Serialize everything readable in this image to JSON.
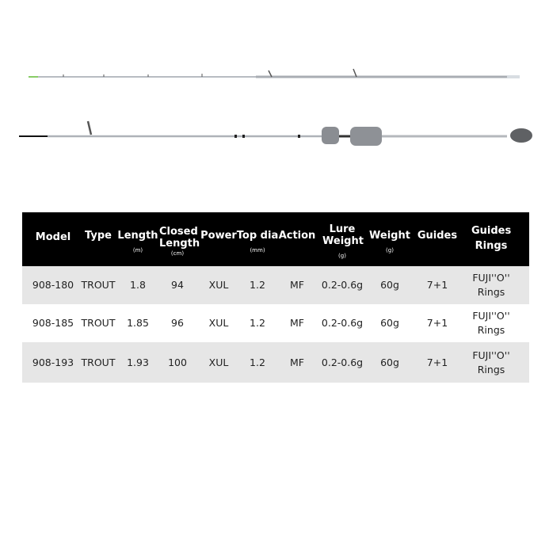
{
  "table": {
    "headers": [
      {
        "label": "Model",
        "unit": ""
      },
      {
        "label": "Type",
        "unit": ""
      },
      {
        "label": "Length",
        "unit": "(m)"
      },
      {
        "label": "Closed Length",
        "unit": "(cm)"
      },
      {
        "label": "Power",
        "unit": ""
      },
      {
        "label": "Top dia",
        "unit": "(mm)"
      },
      {
        "label": "Action",
        "unit": ""
      },
      {
        "label": "Lure Weight",
        "unit": "(g)"
      },
      {
        "label": "Weight",
        "unit": "(g)"
      },
      {
        "label": "Guides",
        "unit": ""
      },
      {
        "label": "Guides Rings",
        "unit": ""
      }
    ],
    "rows": [
      [
        "908-180",
        "TROUT",
        "1.8",
        "94",
        "XUL",
        "1.2",
        "MF",
        "0.2-0.6g",
        "60g",
        "7+1",
        "FUJI''O'' Rings"
      ],
      [
        "908-185",
        "TROUT",
        "1.85",
        "96",
        "XUL",
        "1.2",
        "MF",
        "0.2-0.6g",
        "60g",
        "7+1",
        "FUJI''O'' Rings"
      ],
      [
        "908-193",
        "TROUT",
        "1.93",
        "100",
        "XUL",
        "1.2",
        "MF",
        "0.2-0.6g",
        "60g",
        "7+1",
        "FUJI''O'' Rings"
      ]
    ]
  },
  "colors": {
    "header_bg": "#000000",
    "stripe": "#e6e6e6"
  }
}
